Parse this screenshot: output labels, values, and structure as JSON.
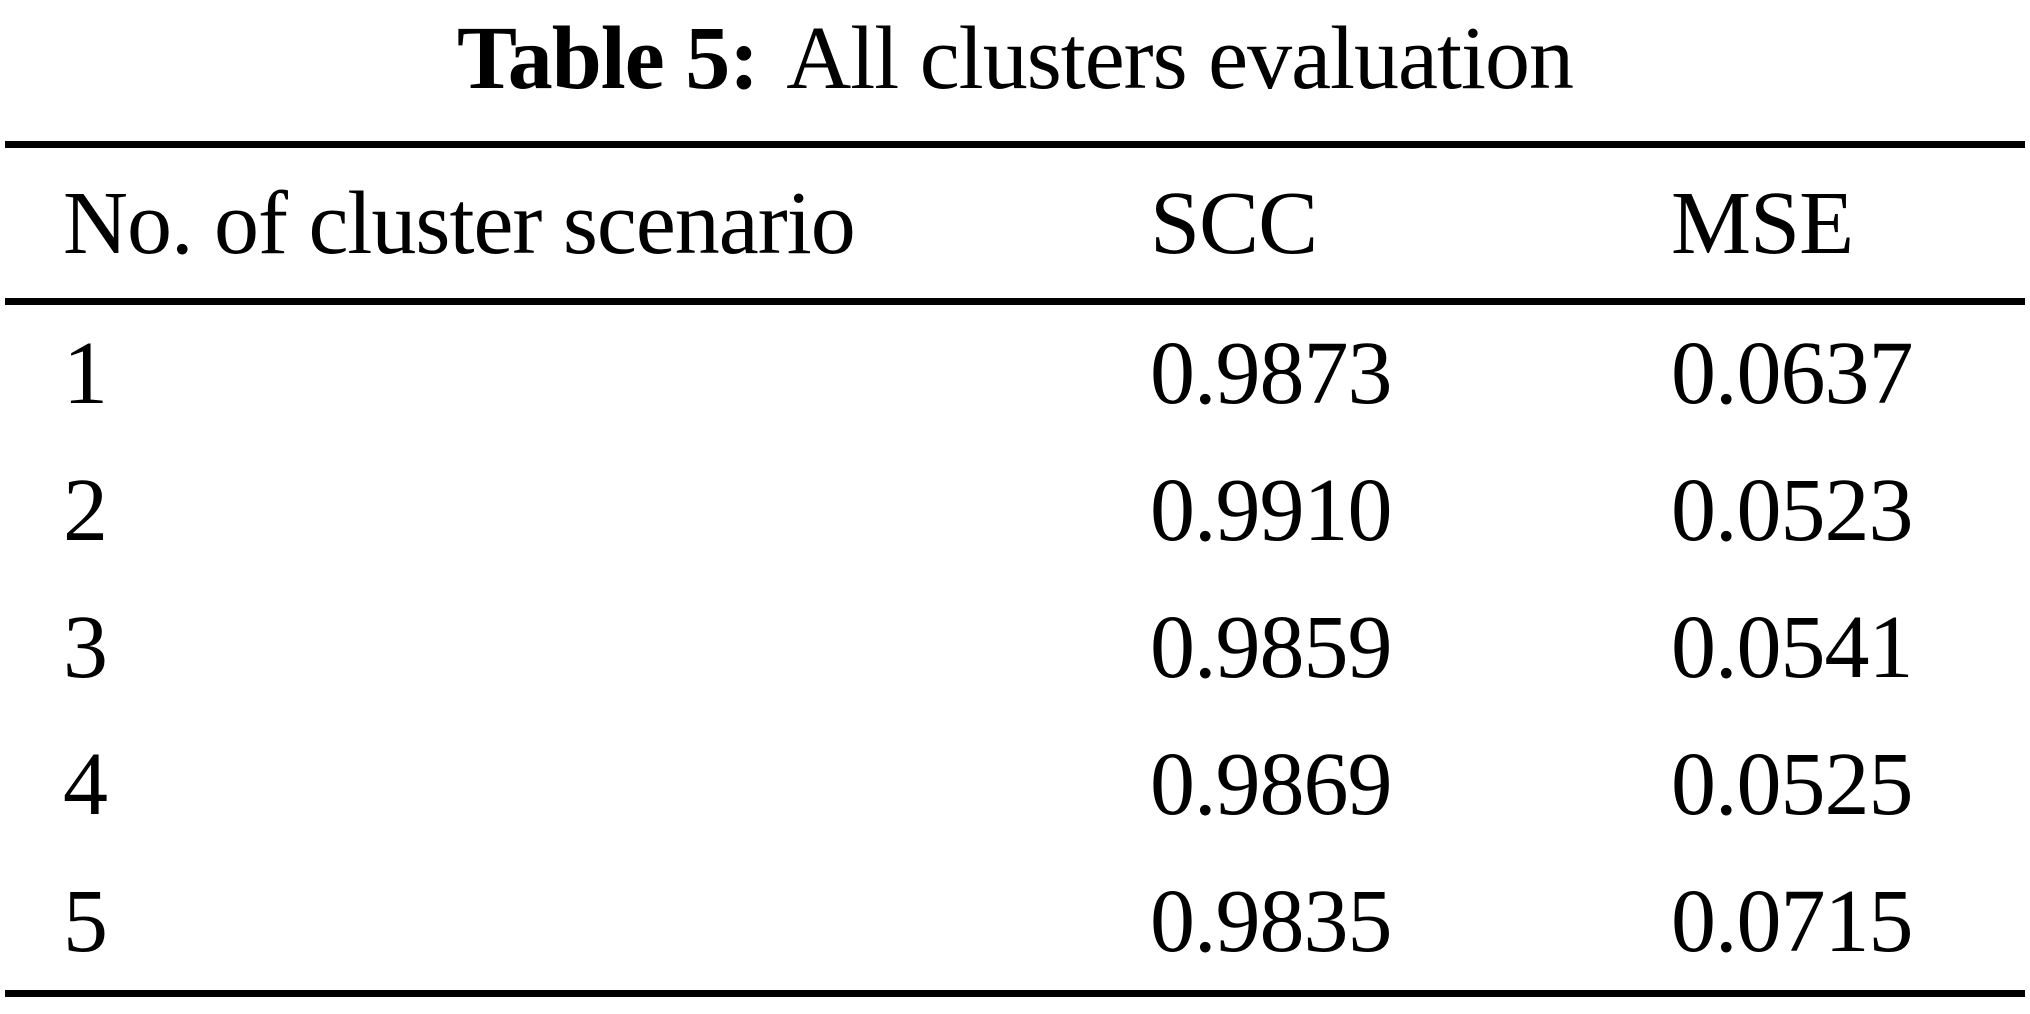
{
  "caption": {
    "label": "Table 5:",
    "title": "All clusters evaluation"
  },
  "table": {
    "headers": [
      "No. of cluster scenario",
      "SCC",
      "MSE"
    ],
    "rows": [
      {
        "scenario": "1",
        "scc": "0.9873",
        "mse": "0.0637"
      },
      {
        "scenario": "2",
        "scc": "0.9910",
        "mse": "0.0523"
      },
      {
        "scenario": "3",
        "scc": "0.9859",
        "mse": "0.0541"
      },
      {
        "scenario": "4",
        "scc": "0.9869",
        "mse": "0.0525"
      },
      {
        "scenario": "5",
        "scc": "0.9835",
        "mse": "0.0715"
      }
    ]
  },
  "colors": {
    "text": "#000000",
    "background": "#ffffff",
    "rule": "#000000"
  }
}
